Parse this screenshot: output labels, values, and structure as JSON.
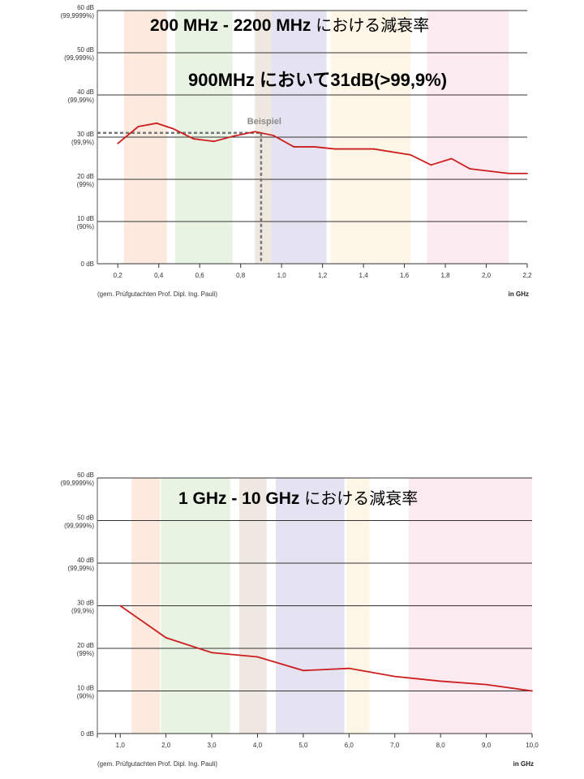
{
  "chart_data": [
    {
      "type": "line",
      "title": "200 MHz - 2200 MHz",
      "title_suffix": "における減衰率",
      "annotation": "900MHz において31dB(>99,9%)",
      "marker_label": "Beispiel",
      "marker": {
        "x": 0.9,
        "y": 31
      },
      "source": "(gem. Prüfgutachten Prof. Dipl. Ing. Pauli)",
      "xunit": "in GHz",
      "xlim": [
        0.1,
        2.2
      ],
      "ylim": [
        0,
        60
      ],
      "xticks": [
        0.2,
        0.4,
        0.6,
        0.8,
        1.0,
        1.2,
        1.4,
        1.6,
        1.8,
        2.0,
        2.2
      ],
      "xtick_labels": [
        "0,2",
        "0,4",
        "0,6",
        "0,8",
        "1,0",
        "1,2",
        "1,4",
        "1,6",
        "1,8",
        "2,0",
        "2,2"
      ],
      "yticks": [
        {
          "v": 0,
          "l1": "0 dB",
          "l2": ""
        },
        {
          "v": 10,
          "l1": "10 dB",
          "l2": "(90%)"
        },
        {
          "v": 20,
          "l1": "20 dB",
          "l2": "(99%)"
        },
        {
          "v": 30,
          "l1": "30 dB",
          "l2": "(99,9%)"
        },
        {
          "v": 40,
          "l1": "40 dB",
          "l2": "(99,99%)"
        },
        {
          "v": 50,
          "l1": "50 dB",
          "l2": "(99,999%)"
        },
        {
          "v": 60,
          "l1": "60 dB",
          "l2": "(99,9999%)"
        }
      ],
      "bands": [
        {
          "x0": 0.23,
          "x1": 0.44,
          "color": "#fde6d8"
        },
        {
          "x0": 0.48,
          "x1": 0.76,
          "color": "#e4f1de"
        },
        {
          "x0": 0.87,
          "x1": 0.95,
          "color": "#ece4da"
        },
        {
          "x0": 0.95,
          "x1": 1.22,
          "color": "#e0def0"
        },
        {
          "x0": 1.24,
          "x1": 1.63,
          "color": "#fdf3e2"
        },
        {
          "x0": 1.71,
          "x1": 2.11,
          "color": "#fbe6ee"
        }
      ],
      "series": [
        {
          "color": "#cc1f1f",
          "x": [
            0.2,
            0.3,
            0.39,
            0.47,
            0.57,
            0.67,
            0.77,
            0.87,
            0.96,
            1.06,
            1.16,
            1.26,
            1.45,
            1.63,
            1.73,
            1.83,
            1.92,
            2.11,
            2.2
          ],
          "y": [
            28.5,
            32.5,
            33.3,
            32,
            29.6,
            29,
            30.3,
            31.3,
            30.4,
            27.7,
            27.7,
            27.2,
            27.2,
            25.8,
            23.4,
            24.9,
            22.5,
            21.4,
            21.4
          ]
        }
      ]
    },
    {
      "type": "line",
      "title": "1 GHz - 10 GHz",
      "title_suffix": "における減衰率",
      "source": "(gem. Prüfgutachten Prof. Dipl. Ing. Pauli)",
      "xunit": "in GHz",
      "xlim": [
        0.5,
        10.0
      ],
      "ylim": [
        0,
        60
      ],
      "xticks": [
        1.0,
        2.0,
        3.0,
        4.0,
        5.0,
        6.0,
        7.0,
        8.0,
        9.0,
        10.0
      ],
      "xtick_labels": [
        "1,0",
        "2,0",
        "3,0",
        "4,0",
        "5,0",
        "6,0",
        "7,0",
        "8,0",
        "9,0",
        "10,0"
      ],
      "yticks": [
        {
          "v": 0,
          "l1": "0 dB",
          "l2": ""
        },
        {
          "v": 10,
          "l1": "10 dB",
          "l2": "(90%)"
        },
        {
          "v": 20,
          "l1": "20 dB",
          "l2": "(99%)"
        },
        {
          "v": 30,
          "l1": "30 dB",
          "l2": "(99,9%)"
        },
        {
          "v": 40,
          "l1": "40 dB",
          "l2": "(99,99%)"
        },
        {
          "v": 50,
          "l1": "50 dB",
          "l2": "(99,999%)"
        },
        {
          "v": 60,
          "l1": "60 dB",
          "l2": "(99,9999%)"
        }
      ],
      "bands": [
        {
          "x0": 1.25,
          "x1": 1.87,
          "color": "#fde6d8"
        },
        {
          "x0": 1.89,
          "x1": 3.4,
          "color": "#e4f1de"
        },
        {
          "x0": 3.6,
          "x1": 4.2,
          "color": "#ece4da"
        },
        {
          "x0": 4.4,
          "x1": 5.9,
          "color": "#e0def0"
        },
        {
          "x0": 5.95,
          "x1": 6.45,
          "color": "#fdf3e2"
        },
        {
          "x0": 7.3,
          "x1": 10.0,
          "color": "#fbe6ee"
        }
      ],
      "series": [
        {
          "color": "#cc1f1f",
          "x": [
            1.0,
            2.0,
            3.0,
            4.0,
            5.0,
            6.0,
            7.0,
            8.0,
            9.0,
            10.0
          ],
          "y": [
            30,
            22.5,
            19,
            18,
            14.8,
            15.3,
            13.4,
            12.3,
            11.5,
            10
          ]
        }
      ]
    }
  ]
}
